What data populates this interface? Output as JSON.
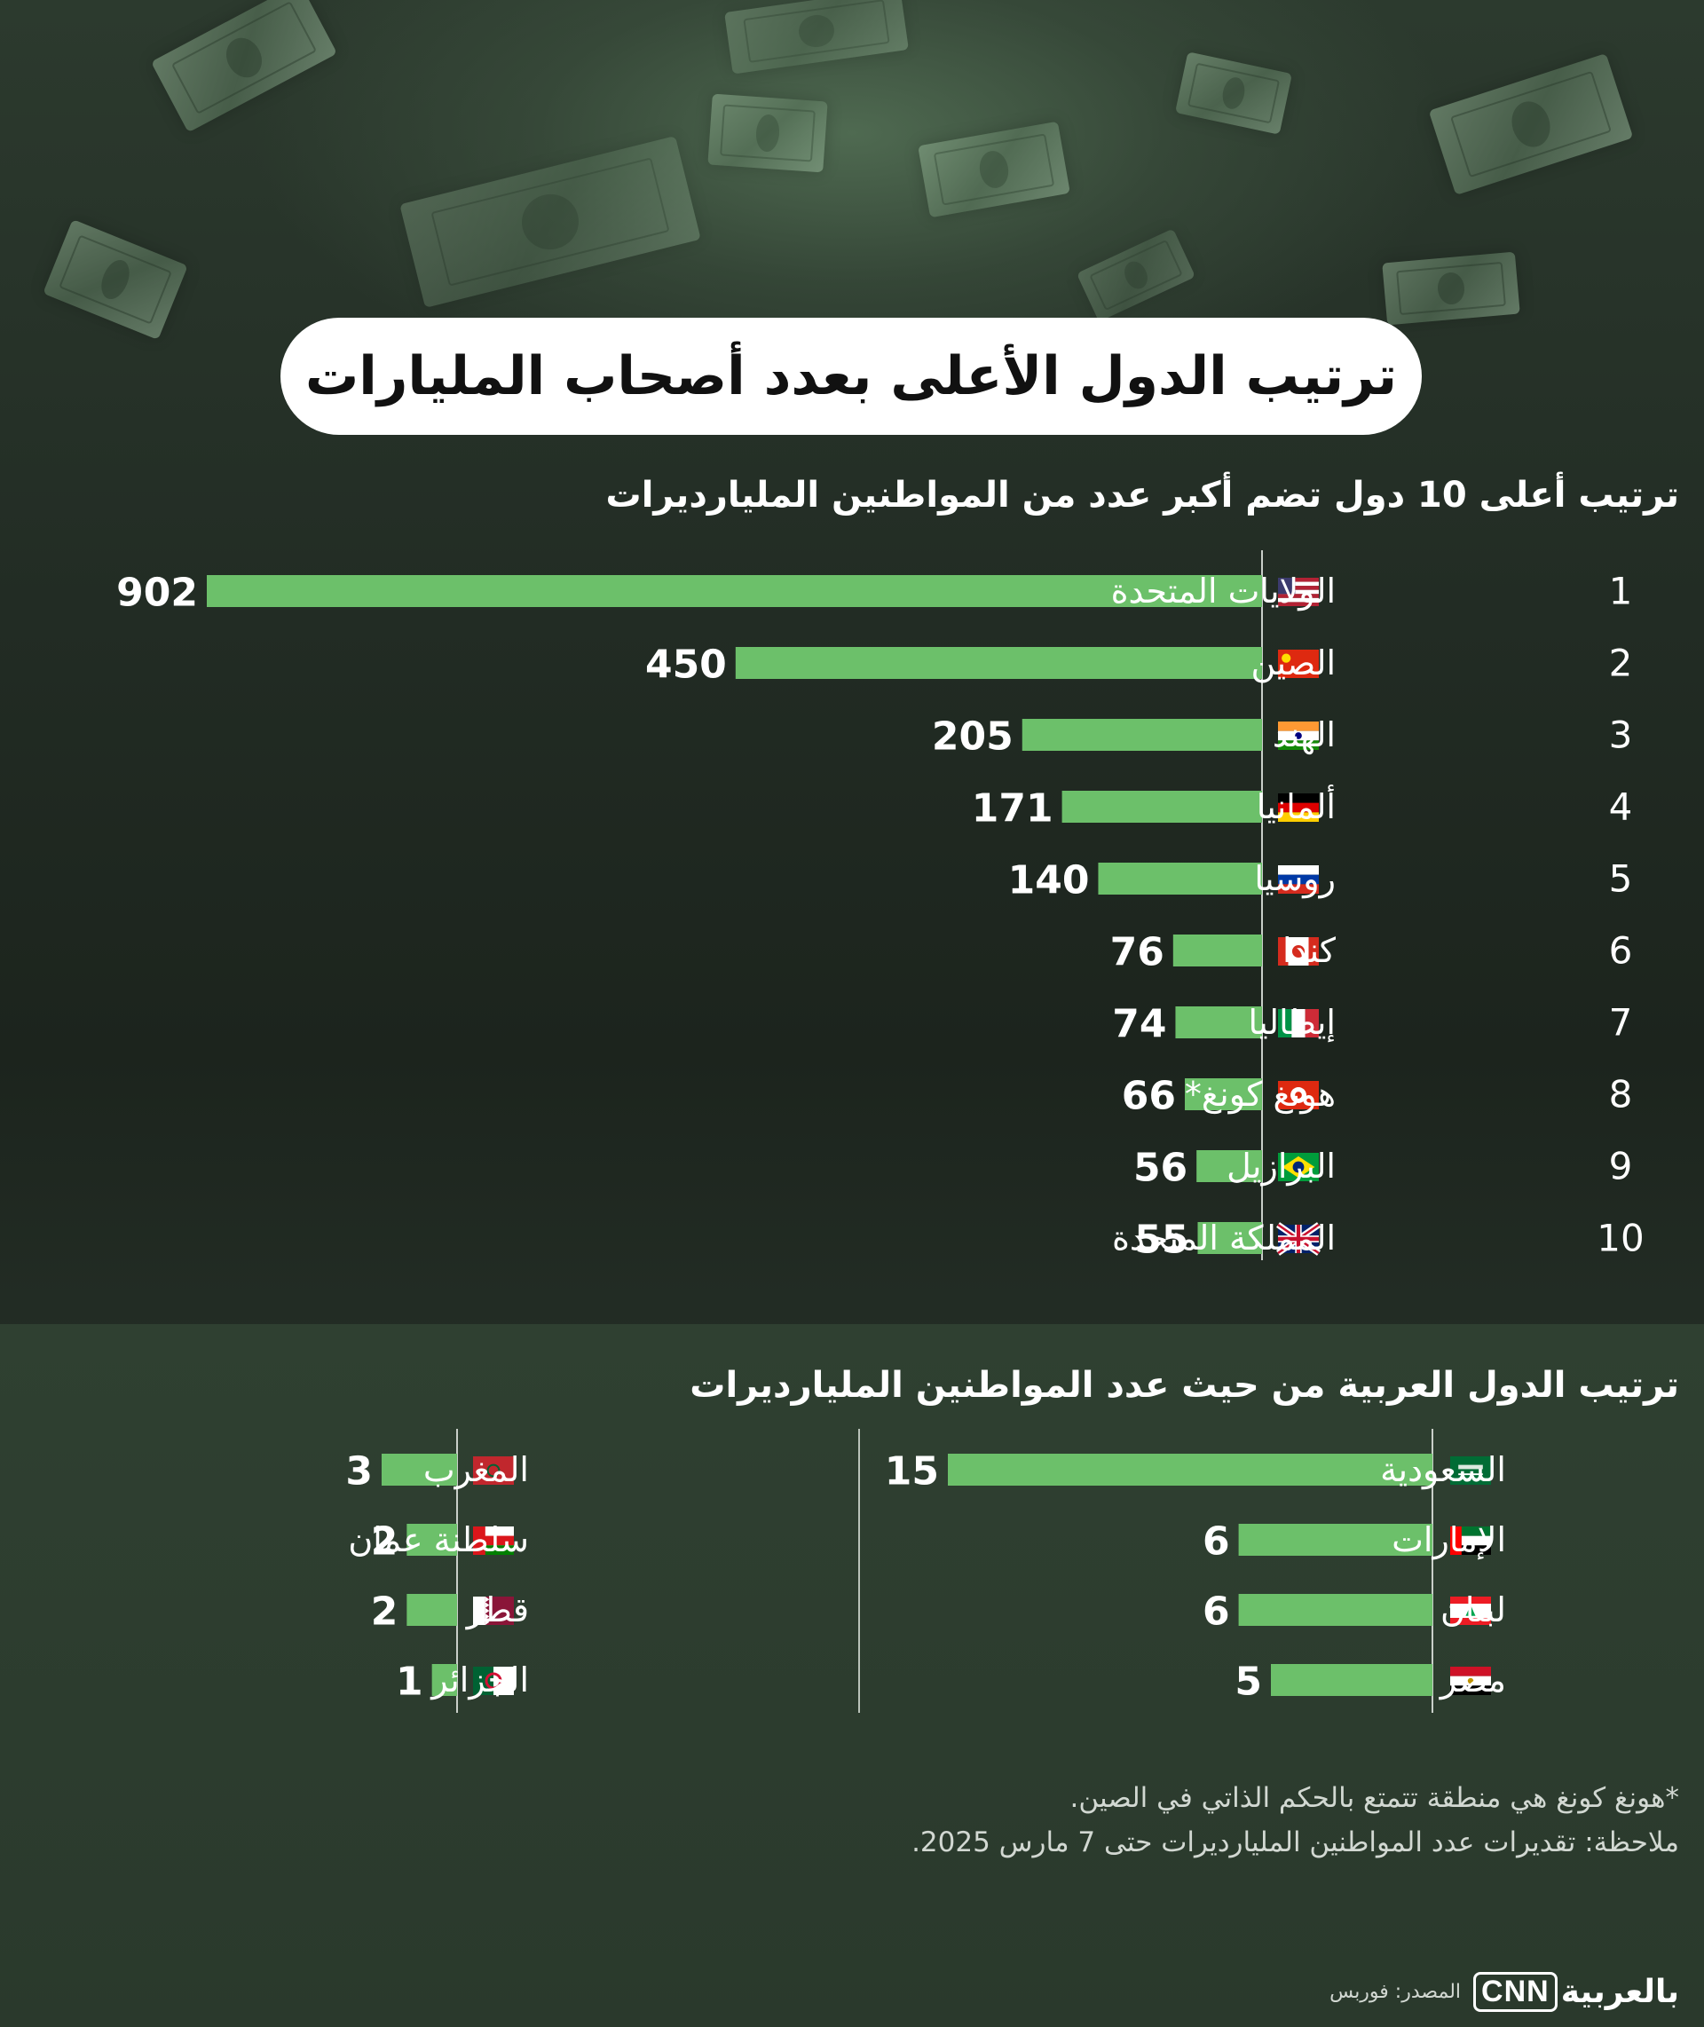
{
  "title": "ترتيب الدول الأعلى بعدد أصحاب المليارات",
  "footnote_hk": "*هونغ كونغ هي منطقة تتمتع بالحكم الذاتي في الصين.",
  "footnote_note": "ملاحظة: تقديرات عدد المواطنين المليارديرات حتى 7 مارس 2025.",
  "source": "المصدر: فوربس",
  "brand": {
    "cnn": "CNN",
    "arabic": "بالعربية"
  },
  "colors": {
    "bar": "#6cc06a",
    "background": "#202a22",
    "text": "#ffffff"
  },
  "chart_data": [
    {
      "type": "bar",
      "orientation": "horizontal",
      "title": "ترتيب أعلى 10 دول تضم أكبر عدد من المواطنين المليارديرات",
      "ranks": [
        "1",
        "2",
        "3",
        "4",
        "5",
        "6",
        "7",
        "8",
        "9",
        "10"
      ],
      "categories": [
        "الولايات المتحدة",
        "الصين",
        "الهند",
        "ألمانيا",
        "روسيا",
        "كندا",
        "إيطاليا",
        "هونغ كونغ*",
        "البرازيل",
        "المملكة المتحدة"
      ],
      "flags": [
        "us",
        "cn",
        "in",
        "de",
        "ru",
        "ca",
        "it",
        "hk",
        "br",
        "gb"
      ],
      "values": [
        902,
        450,
        205,
        171,
        140,
        76,
        74,
        66,
        56,
        55
      ],
      "xlim": [
        0,
        902
      ]
    },
    {
      "type": "bar",
      "orientation": "horizontal",
      "title": "ترتيب الدول العربية من حيث عدد المواطنين المليارديرات",
      "groups": [
        {
          "categories": [
            "السعودية",
            "الإمارات",
            "لبنان",
            "مصر"
          ],
          "flags": [
            "sa",
            "ae",
            "lb",
            "eg"
          ],
          "values": [
            15,
            6,
            6,
            5
          ]
        },
        {
          "categories": [
            "المغرب",
            "سلطنة عمان",
            "قطر",
            "الجزائر"
          ],
          "flags": [
            "ma",
            "om",
            "qa",
            "dz"
          ],
          "values": [
            3,
            2,
            2,
            1
          ]
        }
      ]
    }
  ]
}
